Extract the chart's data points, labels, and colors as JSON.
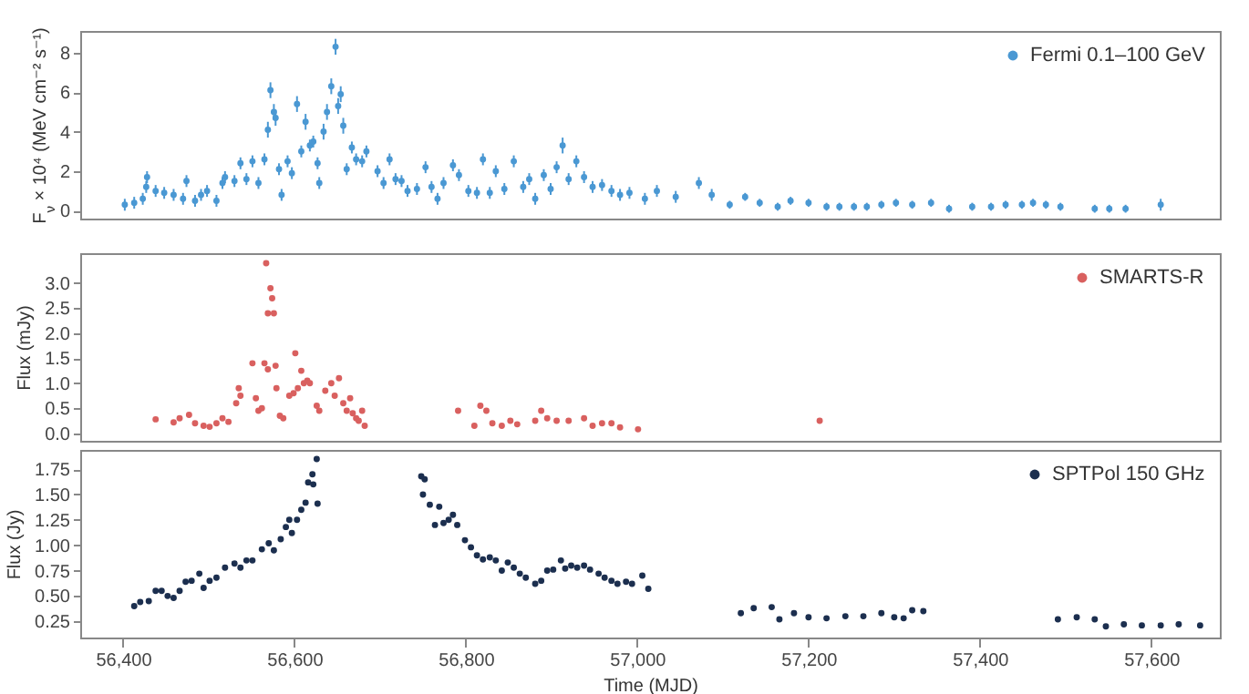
{
  "chart_data": [
    {
      "type": "scatter",
      "ylabel": "F$_{ν}$ × 10⁴ (MeV cm⁻² s⁻¹)",
      "xlim": [
        56350,
        57680
      ],
      "ylim": [
        -0.4,
        9.1
      ],
      "yticks": [
        0,
        2,
        4,
        6,
        8
      ],
      "tick_labels": "y",
      "marker": "circle",
      "legend": "top right",
      "series": [
        {
          "name": "Fermi 0.1–100 GeV",
          "color": "#4a98d3",
          "x": [
            56402,
            56413,
            56423,
            56427,
            56428,
            56438,
            56448,
            56459,
            56470,
            56474,
            56484,
            56491,
            56498,
            56509,
            56516,
            56519,
            56530,
            56537,
            56544,
            56551,
            56558,
            56565,
            56569,
            56572,
            56576,
            56578,
            56582,
            56585,
            56592,
            56597,
            56603,
            56608,
            56613,
            56618,
            56622,
            56627,
            56629,
            56634,
            56638,
            56643,
            56648,
            56651,
            56654,
            56657,
            56661,
            56667,
            56672,
            56679,
            56684,
            56697,
            56704,
            56711,
            56718,
            56725,
            56732,
            56743,
            56753,
            56760,
            56767,
            56774,
            56785,
            56792,
            56803,
            56813,
            56820,
            56828,
            56835,
            56845,
            56856,
            56867,
            56874,
            56881,
            56891,
            56899,
            56906,
            56913,
            56920,
            56929,
            56938,
            56948,
            56959,
            56970,
            56980,
            56991,
            57009,
            57023,
            57045,
            57072,
            57087,
            57108,
            57126,
            57143,
            57164,
            57179,
            57200,
            57221,
            57236,
            57253,
            57268,
            57285,
            57302,
            57321,
            57343,
            57364,
            57391,
            57413,
            57430,
            57449,
            57462,
            57477,
            57494,
            57534,
            57551,
            57570,
            57611
          ],
          "values": [
            0.3,
            0.4,
            0.6,
            1.2,
            1.7,
            1.0,
            0.9,
            0.8,
            0.6,
            1.5,
            0.5,
            0.8,
            1.0,
            0.5,
            1.4,
            1.7,
            1.5,
            2.4,
            1.6,
            2.5,
            1.4,
            2.6,
            4.1,
            6.1,
            5.0,
            4.7,
            2.1,
            0.8,
            2.5,
            1.9,
            5.4,
            3.0,
            4.5,
            3.3,
            3.5,
            2.4,
            1.4,
            4.0,
            5.0,
            6.3,
            8.3,
            5.3,
            5.9,
            4.3,
            2.1,
            3.2,
            2.6,
            2.5,
            3.0,
            2.0,
            1.4,
            2.6,
            1.6,
            1.5,
            1.0,
            1.1,
            2.2,
            1.2,
            0.6,
            1.4,
            2.3,
            1.8,
            1.0,
            0.9,
            2.6,
            0.9,
            2.0,
            1.1,
            2.5,
            1.2,
            1.6,
            0.6,
            1.8,
            1.1,
            2.2,
            3.3,
            1.6,
            2.5,
            1.7,
            1.2,
            1.3,
            1.0,
            0.8,
            0.9,
            0.6,
            1.0,
            0.7,
            1.4,
            0.8,
            0.3,
            0.7,
            0.4,
            0.2,
            0.5,
            0.4,
            0.2,
            0.2,
            0.2,
            0.2,
            0.3,
            0.4,
            0.3,
            0.4,
            0.1,
            0.2,
            0.2,
            0.3,
            0.3,
            0.4,
            0.3,
            0.2,
            0.1,
            0.1,
            0.1,
            0.3
          ],
          "errors": [
            0.3,
            0.3,
            0.3,
            0.3,
            0.3,
            0.3,
            0.3,
            0.3,
            0.3,
            0.3,
            0.3,
            0.3,
            0.3,
            0.3,
            0.3,
            0.3,
            0.3,
            0.3,
            0.3,
            0.3,
            0.3,
            0.3,
            0.4,
            0.4,
            0.4,
            0.4,
            0.3,
            0.3,
            0.3,
            0.3,
            0.4,
            0.3,
            0.4,
            0.3,
            0.3,
            0.3,
            0.3,
            0.4,
            0.4,
            0.4,
            0.4,
            0.4,
            0.4,
            0.4,
            0.3,
            0.3,
            0.3,
            0.3,
            0.3,
            0.3,
            0.3,
            0.3,
            0.3,
            0.3,
            0.3,
            0.3,
            0.3,
            0.3,
            0.3,
            0.3,
            0.3,
            0.3,
            0.3,
            0.3,
            0.3,
            0.3,
            0.3,
            0.3,
            0.3,
            0.3,
            0.3,
            0.3,
            0.3,
            0.3,
            0.3,
            0.4,
            0.3,
            0.3,
            0.3,
            0.3,
            0.3,
            0.3,
            0.3,
            0.3,
            0.3,
            0.3,
            0.3,
            0.3,
            0.3,
            0.2,
            0.2,
            0.2,
            0.2,
            0.2,
            0.2,
            0.2,
            0.2,
            0.2,
            0.2,
            0.2,
            0.2,
            0.2,
            0.2,
            0.2,
            0.2,
            0.2,
            0.2,
            0.2,
            0.2,
            0.2,
            0.2,
            0.2,
            0.2,
            0.2,
            0.3
          ]
        }
      ]
    },
    {
      "type": "scatter",
      "ylabel": "Flux (mJy)",
      "xlim": [
        56350,
        57680
      ],
      "ylim": [
        -0.15,
        3.6
      ],
      "yticks": [
        {
          "value": 0,
          "label": "0.0"
        },
        {
          "value": 0.5,
          "label": "0.5"
        },
        {
          "value": 1,
          "label": "1.0"
        },
        {
          "value": 1.5,
          "label": "1.5"
        },
        {
          "value": 2,
          "label": "2.0"
        },
        {
          "value": 2.5,
          "label": "2.5"
        },
        {
          "value": 3,
          "label": "3.0"
        }
      ],
      "tick_labels": "y",
      "marker": "circle",
      "legend": "top right",
      "series": [
        {
          "name": "SMARTS-R",
          "color": "#d9605f",
          "x": [
            56438,
            56459,
            56466,
            56477,
            56484,
            56494,
            56501,
            56509,
            56516,
            56523,
            56532,
            56535,
            56537,
            56551,
            56555,
            56558,
            56562,
            56565,
            56567,
            56569,
            56572,
            56574,
            56576,
            56569,
            56578,
            56579,
            56583,
            56587,
            56594,
            56599,
            56601,
            56604,
            56608,
            56611,
            56615,
            56618,
            56626,
            56629,
            56636,
            56643,
            56647,
            56652,
            56657,
            56661,
            56665,
            56668,
            56672,
            56675,
            56679,
            56682,
            56791,
            56810,
            56817,
            56824,
            56831,
            56842,
            56852,
            56860,
            56881,
            56888,
            56895,
            56906,
            56920,
            56938,
            56948,
            56959,
            56970,
            56980,
            57001,
            57213
          ],
          "values": [
            0.28,
            0.22,
            0.3,
            0.37,
            0.2,
            0.15,
            0.13,
            0.2,
            0.3,
            0.23,
            0.6,
            0.9,
            0.75,
            1.4,
            0.7,
            0.45,
            0.5,
            1.4,
            3.4,
            2.4,
            2.9,
            2.7,
            2.4,
            1.28,
            1.35,
            0.9,
            0.35,
            0.3,
            0.75,
            0.8,
            1.6,
            0.9,
            1.25,
            1.0,
            1.05,
            1.0,
            0.55,
            0.45,
            0.85,
            1.0,
            0.75,
            1.1,
            0.6,
            0.45,
            0.7,
            0.4,
            0.3,
            0.25,
            0.45,
            0.15,
            0.45,
            0.15,
            0.55,
            0.45,
            0.2,
            0.15,
            0.25,
            0.18,
            0.25,
            0.45,
            0.3,
            0.25,
            0.25,
            0.3,
            0.15,
            0.2,
            0.2,
            0.12,
            0.08,
            0.25
          ]
        }
      ]
    },
    {
      "type": "scatter",
      "xlabel": "Time (MJD)",
      "ylabel": "Flux (Jy)",
      "xlim": [
        56350,
        57680
      ],
      "ylim": [
        0.09,
        1.94
      ],
      "xticks": [
        {
          "value": 56400,
          "label": "56,400"
        },
        {
          "value": 56600,
          "label": "56,600"
        },
        {
          "value": 56800,
          "label": "56,800"
        },
        {
          "value": 57000,
          "label": "57,000"
        },
        {
          "value": 57200,
          "label": "57,200"
        },
        {
          "value": 57400,
          "label": "57,400"
        },
        {
          "value": 57600,
          "label": "57,600"
        }
      ],
      "yticks": [
        {
          "value": 0.25,
          "label": "0.25"
        },
        {
          "value": 0.5,
          "label": "0.50"
        },
        {
          "value": 0.75,
          "label": "0.75"
        },
        {
          "value": 1,
          "label": "1.00"
        },
        {
          "value": 1.25,
          "label": "1.25"
        },
        {
          "value": 1.5,
          "label": "1.50"
        },
        {
          "value": 1.75,
          "label": "1.75"
        }
      ],
      "marker": "circle",
      "legend": "top right",
      "series": [
        {
          "name": "SPTPol 150 GHz",
          "color": "#1c2f4f",
          "x": [
            56413,
            56420,
            56430,
            56438,
            56445,
            56452,
            56459,
            56466,
            56473,
            56480,
            56489,
            56494,
            56501,
            56509,
            56519,
            56530,
            56537,
            56544,
            56551,
            56562,
            56570,
            56576,
            56584,
            56590,
            56594,
            56597,
            56603,
            56608,
            56613,
            56616,
            56621,
            56622,
            56626,
            56627,
            56748,
            56752,
            56750,
            56758,
            56764,
            56769,
            56774,
            56780,
            56785,
            56790,
            56799,
            56806,
            56813,
            56820,
            56828,
            56835,
            56842,
            56849,
            56856,
            56863,
            56870,
            56881,
            56888,
            56895,
            56902,
            56911,
            56916,
            56923,
            56930,
            56938,
            56945,
            56955,
            56962,
            56970,
            56977,
            56987,
            56994,
            57006,
            57013,
            57121,
            57136,
            57157,
            57166,
            57183,
            57200,
            57221,
            57243,
            57264,
            57285,
            57300,
            57311,
            57321,
            57334,
            57491,
            57513,
            57534,
            57547,
            57568,
            57589,
            57611,
            57632,
            57657
          ],
          "values": [
            0.4,
            0.44,
            0.45,
            0.55,
            0.55,
            0.5,
            0.48,
            0.55,
            0.64,
            0.65,
            0.72,
            0.58,
            0.65,
            0.68,
            0.78,
            0.82,
            0.78,
            0.85,
            0.85,
            0.96,
            1.02,
            0.95,
            1.06,
            1.18,
            1.25,
            1.12,
            1.25,
            1.35,
            1.42,
            1.62,
            1.7,
            1.6,
            1.85,
            1.41,
            1.68,
            1.65,
            1.5,
            1.4,
            1.2,
            1.38,
            1.22,
            1.25,
            1.3,
            1.2,
            1.05,
            0.98,
            0.9,
            0.86,
            0.88,
            0.85,
            0.75,
            0.83,
            0.78,
            0.72,
            0.68,
            0.62,
            0.65,
            0.75,
            0.76,
            0.85,
            0.77,
            0.8,
            0.78,
            0.8,
            0.76,
            0.72,
            0.68,
            0.65,
            0.62,
            0.64,
            0.62,
            0.7,
            0.57,
            0.33,
            0.38,
            0.39,
            0.27,
            0.33,
            0.29,
            0.28,
            0.3,
            0.3,
            0.33,
            0.29,
            0.28,
            0.36,
            0.35,
            0.27,
            0.29,
            0.27,
            0.2,
            0.22,
            0.21,
            0.21,
            0.22,
            0.21
          ]
        }
      ]
    }
  ]
}
